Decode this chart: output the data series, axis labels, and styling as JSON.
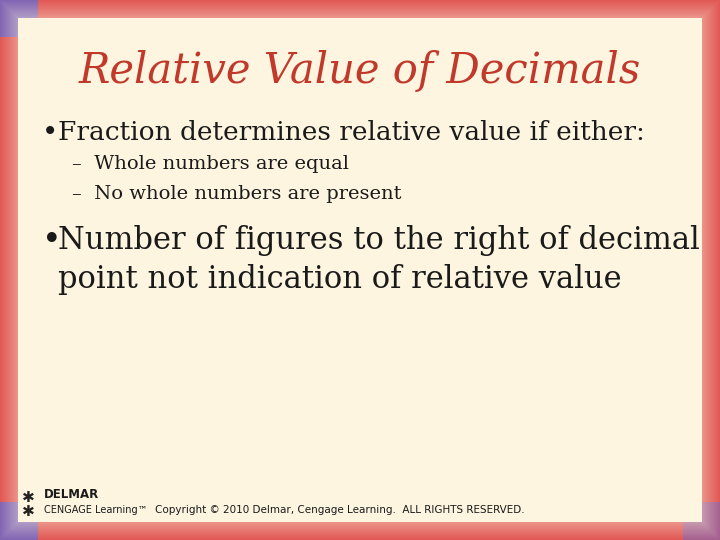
{
  "title": "Relative Value of Decimals",
  "title_color": "#c0392b",
  "bg_color": "#fdf5e0",
  "bullet1": "Fraction determines relative value if either:",
  "sub_bullet1": "Whole numbers are equal",
  "sub_bullet2": "No whole numbers are present",
  "bullet2_line1": "Number of figures to the right of decimal",
  "bullet2_line2": "point not indication of relative value",
  "bullet_fontsize": 19,
  "subbullet_fontsize": 14,
  "bullet2_fontsize": 22,
  "title_fontsize": 30,
  "body_color": "#1a1a1a",
  "copyright": "Copyright © 2010 Delmar, Cengage Learning.  ALL RIGHTS RESERVED.",
  "delmar_line1": "DELMAR",
  "delmar_line2": "CENGAGE Learning",
  "copyright_fontsize": 7.5,
  "border_red": [
    220,
    60,
    60
  ],
  "border_blue": [
    80,
    80,
    200
  ],
  "border_width": 38
}
